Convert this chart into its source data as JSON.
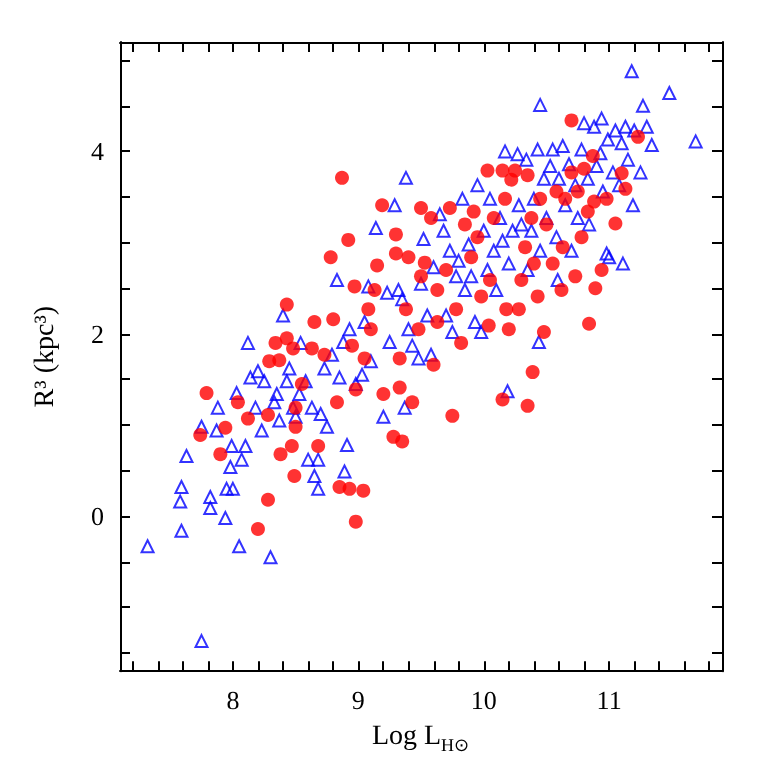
{
  "chart_data": {
    "type": "scatter",
    "xlabel": "Log L$_{H⊙}$",
    "ylabel": "R³ (kpc³)",
    "xlim": [
      7.1,
      11.9
    ],
    "ylim": [
      -1.7,
      5.2
    ],
    "xticks": [
      {
        "value": 7.2,
        "label": null
      },
      {
        "value": 7.4,
        "label": null
      },
      {
        "value": 7.6,
        "label": null
      },
      {
        "value": 7.8,
        "label": null
      },
      8,
      {
        "value": 8.2,
        "label": null
      },
      {
        "value": 8.4,
        "label": null
      },
      {
        "value": 8.6,
        "label": null
      },
      {
        "value": 8.8,
        "label": null
      },
      9,
      {
        "value": 9.2,
        "label": null
      },
      {
        "value": 9.4,
        "label": null
      },
      {
        "value": 9.6,
        "label": null
      },
      {
        "value": 9.8,
        "label": null
      },
      10,
      {
        "value": 10.2,
        "label": null
      },
      {
        "value": 10.4,
        "label": null
      },
      {
        "value": 10.6,
        "label": null
      },
      {
        "value": 10.8,
        "label": null
      },
      11,
      {
        "value": 11.2,
        "label": null
      },
      {
        "value": 11.4,
        "label": null
      },
      {
        "value": 11.6,
        "label": null
      },
      {
        "value": 11.8,
        "label": null
      }
    ],
    "yticks": [
      {
        "value": -1.5,
        "label": null
      },
      {
        "value": -1,
        "label": null
      },
      {
        "value": -0.5,
        "label": null
      },
      0,
      {
        "value": 0.5,
        "label": null
      },
      {
        "value": 1,
        "label": null
      },
      {
        "value": 1.5,
        "label": null
      },
      2,
      {
        "value": 2.5,
        "label": null
      },
      {
        "value": 3,
        "label": null
      },
      {
        "value": 3.5,
        "label": null
      },
      4,
      {
        "value": 4.5,
        "label": null
      },
      {
        "value": 5,
        "label": null
      }
    ],
    "grid": false,
    "series": [
      {
        "color": "#0000ff",
        "marker": "triangle",
        "x": [
          7.32,
          7.75,
          7.59,
          7.58,
          7.59,
          7.63,
          7.75,
          7.82,
          7.82,
          7.87,
          7.88,
          7.94,
          7.95,
          7.98,
          7.99,
          8.0,
          8.03,
          8.05,
          8.07,
          8.1,
          8.12,
          8.14,
          8.18,
          8.2,
          8.23,
          8.25,
          8.3,
          8.33,
          8.35,
          8.37,
          8.4,
          8.43,
          8.45,
          8.48,
          8.5,
          8.53,
          8.54,
          8.58,
          8.6,
          8.63,
          8.65,
          8.68,
          8.68,
          8.7,
          8.73,
          8.75,
          8.79,
          8.83,
          8.85,
          8.88,
          8.89,
          8.91,
          8.93,
          8.98,
          9.03,
          9.05,
          9.08,
          9.1,
          9.14,
          9.2,
          9.23,
          9.25,
          9.29,
          9.32,
          9.35,
          9.37,
          9.38,
          9.4,
          9.43,
          9.48,
          9.5,
          9.52,
          9.55,
          9.58,
          9.6,
          9.65,
          9.68,
          9.7,
          9.73,
          9.75,
          9.78,
          9.8,
          9.83,
          9.85,
          9.88,
          9.9,
          9.93,
          9.95,
          9.98,
          10.0,
          10.03,
          10.05,
          10.08,
          10.1,
          10.13,
          10.15,
          10.17,
          10.19,
          10.2,
          10.23,
          10.27,
          10.28,
          10.3,
          10.34,
          10.35,
          10.38,
          10.4,
          10.43,
          10.44,
          10.45,
          10.45,
          10.48,
          10.5,
          10.53,
          10.55,
          10.58,
          10.59,
          10.6,
          10.63,
          10.65,
          10.68,
          10.7,
          10.73,
          10.75,
          10.78,
          10.8,
          10.83,
          10.84,
          10.88,
          10.9,
          10.93,
          10.94,
          10.95,
          10.98,
          10.99,
          11.0,
          11.03,
          11.05,
          11.08,
          11.1,
          11.11,
          11.13,
          11.15,
          11.18,
          11.19,
          11.2,
          11.25,
          11.27,
          11.3,
          11.34,
          11.48,
          11.69
        ],
        "values": [
          -0.33,
          -1.37,
          -0.16,
          0.16,
          0.32,
          0.66,
          0.98,
          0.21,
          0.09,
          0.94,
          1.19,
          -0.02,
          0.3,
          0.54,
          0.77,
          0.3,
          1.35,
          -0.33,
          0.62,
          0.77,
          1.9,
          1.52,
          1.19,
          1.59,
          0.94,
          1.48,
          -0.45,
          1.25,
          1.34,
          1.05,
          2.2,
          1.48,
          1.62,
          1.19,
          1.09,
          1.34,
          1.9,
          1.48,
          0.62,
          1.19,
          0.44,
          0.3,
          0.62,
          1.12,
          1.62,
          0.98,
          1.77,
          2.59,
          1.52,
          1.91,
          0.49,
          0.78,
          2.05,
          1.45,
          1.55,
          2.13,
          2.52,
          1.7,
          3.16,
          1.09,
          2.45,
          1.91,
          3.41,
          2.48,
          2.38,
          1.19,
          3.71,
          2.05,
          1.87,
          1.73,
          2.55,
          3.04,
          2.2,
          1.77,
          2.73,
          3.31,
          3.13,
          2.2,
          2.91,
          2.02,
          2.63,
          2.8,
          3.48,
          2.48,
          2.98,
          2.63,
          2.13,
          3.63,
          2.02,
          3.13,
          2.7,
          3.48,
          2.91,
          2.48,
          3.27,
          3.02,
          4.0,
          1.37,
          2.77,
          3.13,
          3.97,
          3.41,
          3.2,
          3.91,
          2.7,
          3.13,
          3.48,
          4.02,
          1.91,
          4.51,
          2.91,
          3.7,
          3.27,
          3.84,
          4.02,
          3.06,
          2.59,
          3.7,
          4.06,
          3.41,
          3.86,
          2.91,
          3.63,
          3.27,
          4.02,
          4.31,
          3.7,
          3.2,
          4.27,
          3.84,
          3.98,
          4.36,
          3.56,
          2.88,
          4.13,
          2.84,
          3.77,
          4.23,
          3.63,
          4.09,
          2.77,
          4.27,
          3.91,
          4.88,
          3.41,
          4.23,
          3.77,
          4.5,
          4.27,
          4.07,
          4.64,
          4.11
        ]
      },
      {
        "color": "#ff0000",
        "marker": "circle",
        "x": [
          7.74,
          7.79,
          7.9,
          7.94,
          8.04,
          8.12,
          8.2,
          8.28,
          8.28,
          8.29,
          8.34,
          8.37,
          8.38,
          8.43,
          8.43,
          8.48,
          8.47,
          8.49,
          8.5,
          8.5,
          8.55,
          8.63,
          8.65,
          8.68,
          8.73,
          8.78,
          8.8,
          8.83,
          8.87,
          8.85,
          8.93,
          8.92,
          8.95,
          8.98,
          8.98,
          8.97,
          9.04,
          9.05,
          9.08,
          9.1,
          9.13,
          9.15,
          9.19,
          9.2,
          9.28,
          9.3,
          9.3,
          9.33,
          9.35,
          9.33,
          9.38,
          9.4,
          9.43,
          9.48,
          9.5,
          9.5,
          9.53,
          9.58,
          9.6,
          9.63,
          9.63,
          9.7,
          9.73,
          9.75,
          9.78,
          9.82,
          9.85,
          9.9,
          9.92,
          9.95,
          9.98,
          10.03,
          10.04,
          10.05,
          10.08,
          10.15,
          10.15,
          10.17,
          10.18,
          10.2,
          10.22,
          10.25,
          10.28,
          10.3,
          10.33,
          10.35,
          10.35,
          10.38,
          10.39,
          10.4,
          10.43,
          10.45,
          10.48,
          10.5,
          10.55,
          10.58,
          10.62,
          10.63,
          10.65,
          10.7,
          10.7,
          10.73,
          10.75,
          10.78,
          10.8,
          10.83,
          10.84,
          10.87,
          10.88,
          10.89,
          10.94,
          10.98,
          11.05,
          11.1,
          11.13,
          11.23
        ],
        "values": [
          0.89,
          1.35,
          0.68,
          0.97,
          1.25,
          1.07,
          -0.14,
          0.18,
          1.11,
          1.7,
          1.9,
          1.71,
          0.68,
          2.32,
          1.95,
          1.84,
          0.77,
          0.44,
          0.98,
          1.19,
          1.45,
          1.84,
          2.13,
          0.77,
          1.77,
          2.84,
          2.16,
          1.25,
          3.71,
          0.32,
          0.3,
          3.03,
          1.87,
          1.39,
          -0.06,
          2.52,
          0.28,
          1.73,
          2.27,
          2.05,
          2.48,
          2.75,
          3.41,
          1.34,
          0.87,
          3.09,
          2.88,
          1.73,
          0.82,
          1.41,
          2.27,
          2.84,
          1.25,
          2.05,
          3.38,
          2.63,
          2.78,
          3.27,
          1.66,
          2.48,
          2.13,
          2.7,
          3.38,
          1.1,
          2.27,
          1.9,
          3.2,
          2.84,
          3.34,
          3.06,
          2.41,
          3.79,
          2.09,
          2.59,
          3.27,
          3.79,
          1.28,
          3.48,
          2.27,
          2.05,
          3.69,
          3.79,
          2.27,
          2.59,
          2.95,
          1.21,
          3.74,
          3.27,
          1.58,
          2.77,
          2.41,
          3.48,
          2.02,
          3.2,
          2.77,
          3.56,
          2.48,
          2.95,
          3.48,
          4.34,
          3.77,
          2.63,
          3.56,
          3.06,
          3.81,
          3.34,
          2.11,
          3.95,
          3.45,
          2.5,
          2.7,
          3.48,
          3.21,
          3.76,
          3.59,
          4.16
        ]
      }
    ]
  }
}
